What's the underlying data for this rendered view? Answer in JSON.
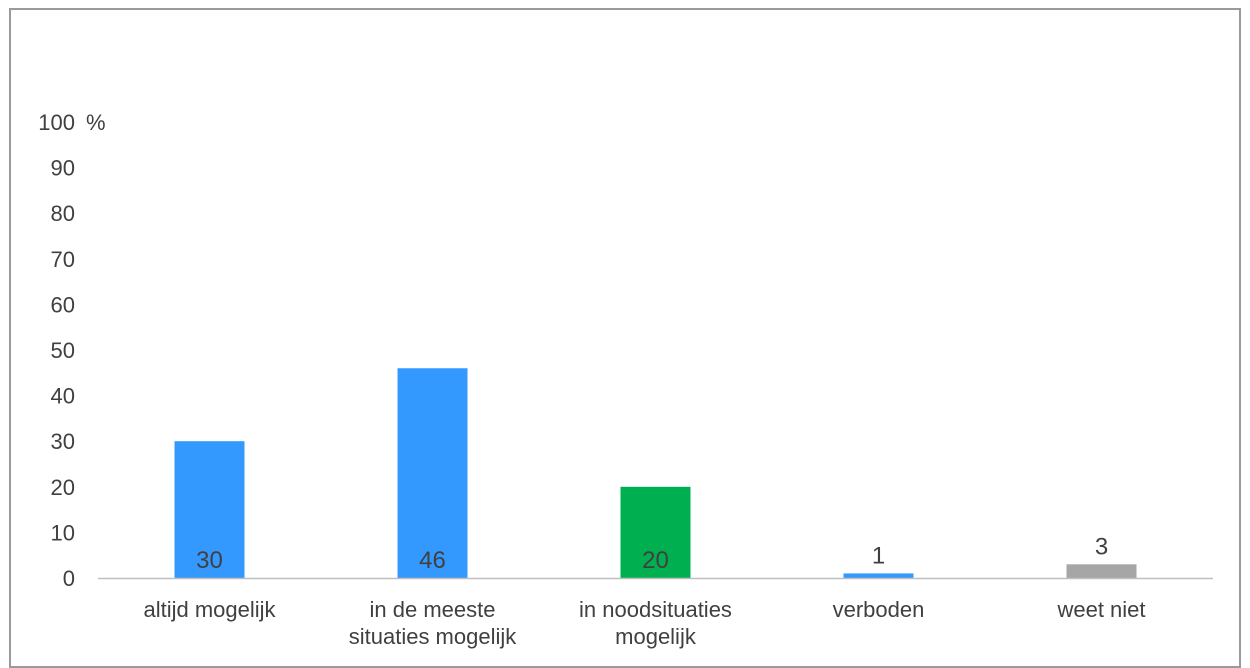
{
  "chart_data": {
    "type": "bar",
    "title": "",
    "xlabel": "",
    "ylabel": "",
    "y_unit": "%",
    "ylim": [
      0,
      100
    ],
    "yticks": [
      0,
      10,
      20,
      30,
      40,
      50,
      60,
      70,
      80,
      90,
      100
    ],
    "grid": false,
    "legend": "none",
    "categories": [
      [
        "altijd mogelijk"
      ],
      [
        "in de meeste",
        "situaties mogelijk"
      ],
      [
        "in noodsituaties",
        "mogelijk"
      ],
      [
        "verboden"
      ],
      [
        "weet niet"
      ]
    ],
    "values": [
      30,
      46,
      20,
      1,
      3
    ],
    "data_labels": [
      "30",
      "46",
      "20",
      "1",
      "3"
    ],
    "bar_colors": [
      "#3399ff",
      "#3399ff",
      "#00b050",
      "#3399ff",
      "#a6a6a6"
    ],
    "axis_color": "#bfbfbf",
    "text_color": "#404040"
  }
}
